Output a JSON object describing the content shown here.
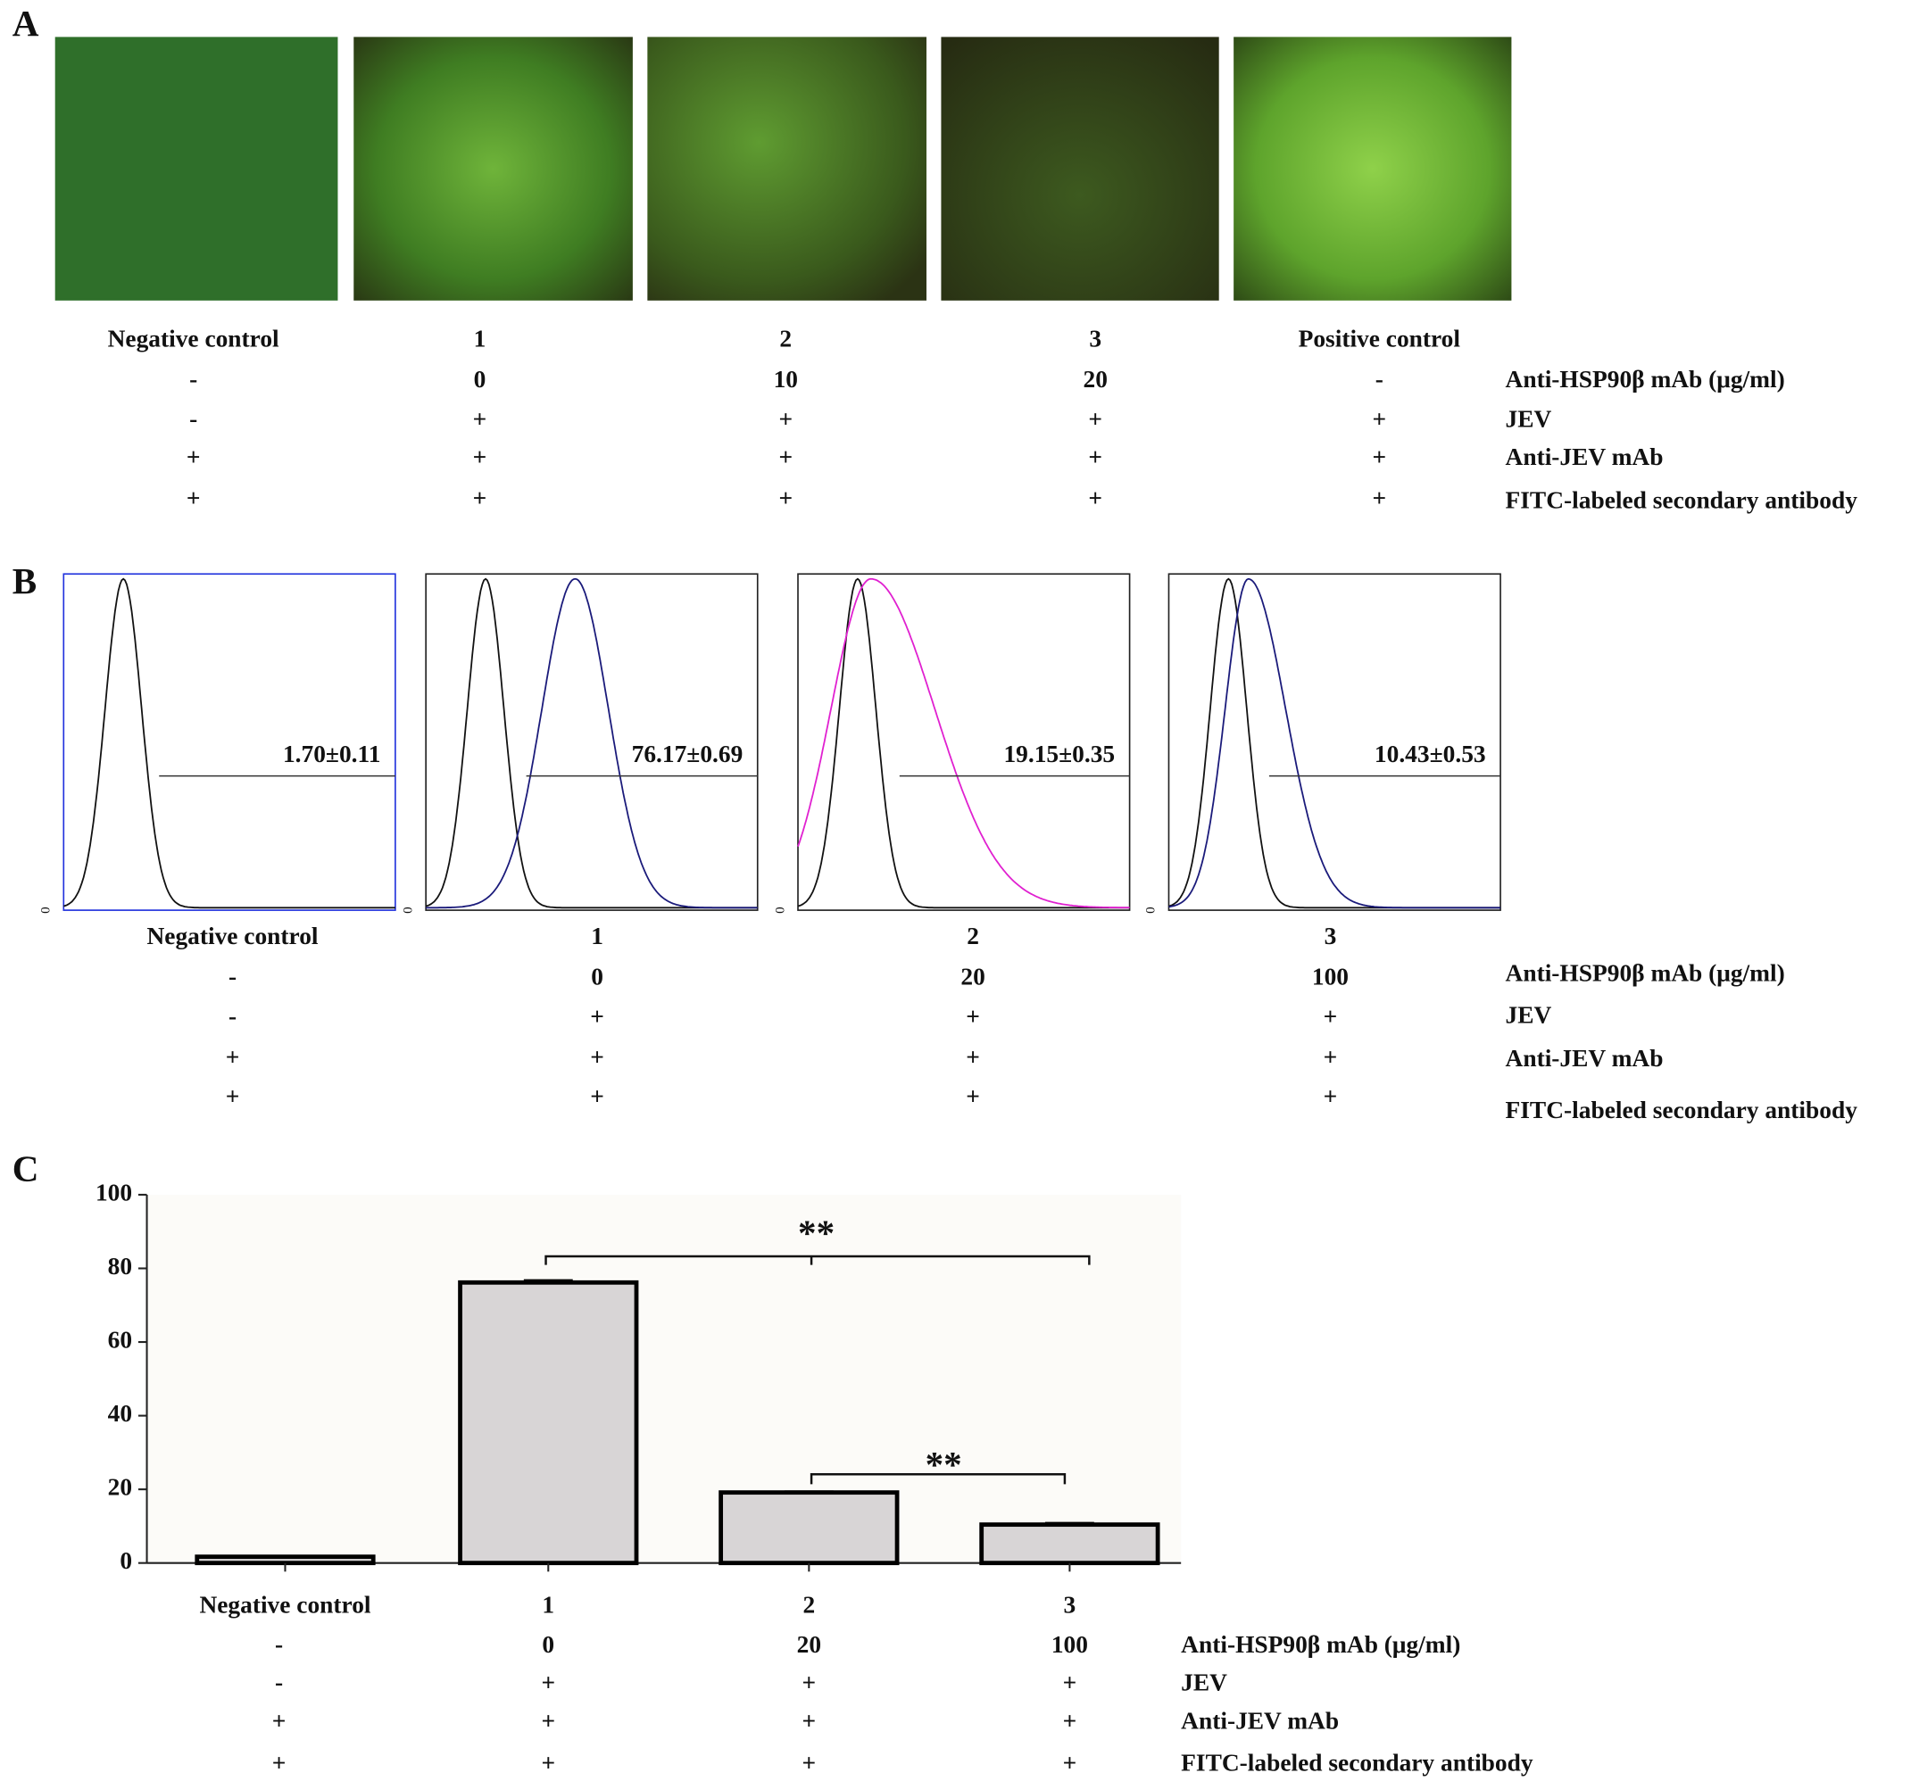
{
  "panel_a": {
    "label": "A",
    "columns": [
      "Negative control",
      "1",
      "2",
      "3",
      "Positive control"
    ],
    "rows": [
      {
        "name": "Anti-HSP90β mAb (μg/ml)",
        "cells": [
          "-",
          "0",
          "10",
          "20",
          "-"
        ]
      },
      {
        "name": "JEV",
        "cells": [
          "-",
          "+",
          "+",
          "+",
          "+"
        ]
      },
      {
        "name": "Anti-JEV mAb",
        "cells": [
          "+",
          "+",
          "+",
          "+",
          "+"
        ]
      },
      {
        "name": "FITC-labeled secondary antibody",
        "cells": [
          "+",
          "+",
          "+",
          "+",
          "+"
        ]
      }
    ]
  },
  "panel_b": {
    "label": "B",
    "axis_zero": "0",
    "percentages": [
      "1.70±0.11",
      "76.17±0.69",
      "19.15±0.35",
      "10.43±0.53"
    ],
    "columns": [
      "Negative control",
      "1",
      "2",
      "3"
    ],
    "rows": [
      {
        "name": "Anti-HSP90β mAb (μg/ml)",
        "cells": [
          "-",
          "0",
          "20",
          "100"
        ]
      },
      {
        "name": "JEV",
        "cells": [
          "-",
          "+",
          "+",
          "+"
        ]
      },
      {
        "name": "Anti-JEV mAb",
        "cells": [
          "+",
          "+",
          "+",
          "+"
        ]
      },
      {
        "name": "FITC-labeled secondary antibody",
        "cells": [
          "+",
          "+",
          "+",
          "+"
        ]
      }
    ]
  },
  "chart_data": {
    "type": "bar",
    "label": "C",
    "categories": [
      "Negative control",
      "1",
      "2",
      "3"
    ],
    "values": [
      1.7,
      76.17,
      19.15,
      10.43
    ],
    "errors": [
      0.11,
      0.69,
      0.35,
      0.53
    ],
    "color": "#d8d5d6",
    "ylim": [
      0,
      100
    ],
    "yticks": [
      0,
      20,
      40,
      60,
      80,
      100
    ],
    "annotations": [
      "**",
      "**"
    ],
    "rows": [
      {
        "name": "Anti-HSP90β mAb (μg/ml)",
        "cells": [
          "-",
          "0",
          "20",
          "100"
        ]
      },
      {
        "name": "JEV",
        "cells": [
          "-",
          "+",
          "+",
          "+"
        ]
      },
      {
        "name": "Anti-JEV mAb",
        "cells": [
          "+",
          "+",
          "+",
          "+"
        ]
      },
      {
        "name": "FITC-labeled secondary antibody",
        "cells": [
          "+",
          "+",
          "+",
          "+"
        ]
      }
    ]
  }
}
